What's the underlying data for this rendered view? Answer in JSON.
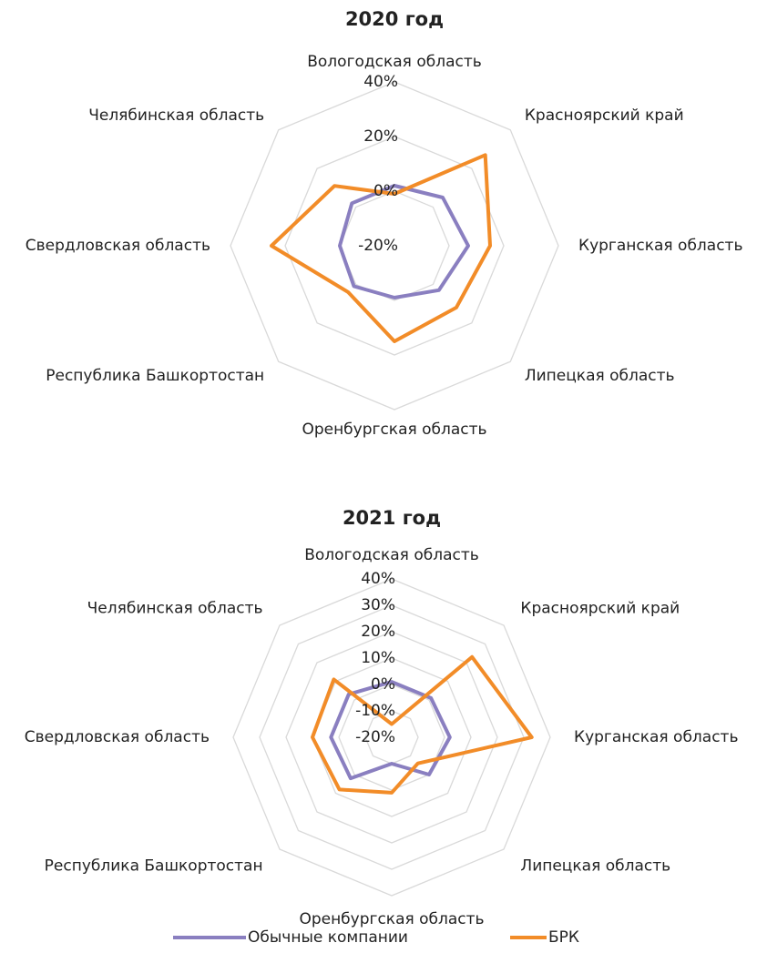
{
  "chart_data": [
    {
      "type": "radar",
      "title": "2020 год",
      "categories": [
        "Вологодская область",
        "Красноярский край",
        "Курганская область",
        "Липецкая область",
        "Оренбургская область",
        "Республика Башкортостан",
        "Свердловская область",
        "Челябинская область"
      ],
      "series": [
        {
          "name": "Обычные компании",
          "color": "#8a7fc0",
          "values": [
            2,
            5,
            7,
            3,
            -1,
            1,
            0,
            2
          ]
        },
        {
          "name": "БРК",
          "color": "#f28c28",
          "values": [
            -1,
            27,
            15,
            12,
            15,
            4,
            25,
            11
          ]
        }
      ],
      "ylim": [
        -20,
        40
      ],
      "yticks": [
        {
          "value": -20,
          "label": "-20%"
        },
        {
          "value": 0,
          "label": "0%"
        },
        {
          "value": 20,
          "label": "20%"
        },
        {
          "value": 40,
          "label": "40%"
        }
      ],
      "grid": true
    },
    {
      "type": "radar",
      "title": "2021 год",
      "categories": [
        "Вологодская область",
        "Красноярский край",
        "Курганская область",
        "Липецкая область",
        "Оренбургская область",
        "Республика Башкортостан",
        "Свердловская область",
        "Челябинская область"
      ],
      "series": [
        {
          "color": "#8a7fc0",
          "values": [
            1,
            1,
            2,
            0,
            -10,
            2,
            3,
            3
          ]
        },
        {
          "color": "#f28c28",
          "values": [
            -15,
            23,
            33,
            -6,
            1,
            8,
            10,
            11
          ]
        }
      ],
      "ylim": [
        -20,
        40
      ],
      "yticks": [
        {
          "value": -20,
          "label": "-20%"
        },
        {
          "value": -10,
          "label": "-10%"
        },
        {
          "value": 0,
          "label": "0%"
        },
        {
          "value": 10,
          "label": "10%"
        },
        {
          "value": 20,
          "label": "20%"
        },
        {
          "value": 30,
          "label": "30%"
        },
        {
          "value": 40,
          "label": "40%"
        }
      ],
      "grid": true
    }
  ]
}
